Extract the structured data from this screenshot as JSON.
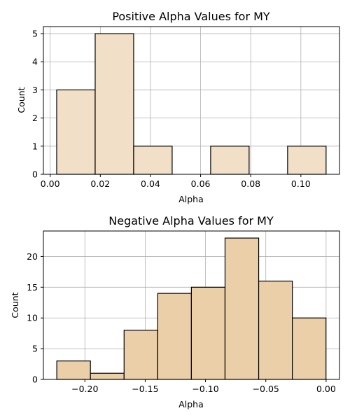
{
  "chart_data": [
    {
      "type": "bar",
      "title": "Positive Alpha Values for MY",
      "xlabel": "Alpha",
      "ylabel": "Count",
      "bin_edges": [
        0.0026,
        0.01795,
        0.0333,
        0.04865,
        0.064,
        0.07935,
        0.0947,
        0.11005
      ],
      "values": [
        3,
        5,
        1,
        0,
        1,
        0,
        1
      ],
      "xlim": [
        -0.0027,
        0.1154
      ],
      "ylim": [
        0,
        5.25
      ],
      "xticks": [
        0.0,
        0.02,
        0.04,
        0.06,
        0.08,
        0.1
      ],
      "xtick_labels": [
        "0.00",
        "0.02",
        "0.04",
        "0.06",
        "0.08",
        "0.10"
      ],
      "yticks": [
        0,
        1,
        2,
        3,
        4,
        5
      ],
      "ytick_labels": [
        "0",
        "1",
        "2",
        "3",
        "4",
        "5"
      ],
      "grid": true,
      "bar_color": "#f1e0c7",
      "edge_color": "#000000"
    },
    {
      "type": "bar",
      "title": "Negative Alpha Values for MY",
      "xlabel": "Alpha",
      "ylabel": "Count",
      "bin_edges": [
        -0.2233,
        -0.1954,
        -0.1675,
        -0.1396,
        -0.1117,
        -0.0838,
        -0.0559,
        -0.028,
        -0.0001
      ],
      "values": [
        3,
        1,
        8,
        14,
        15,
        23,
        16,
        10
      ],
      "xlim": [
        -0.2344,
        0.0111
      ],
      "ylim": [
        0,
        24.15
      ],
      "xticks": [
        -0.2,
        -0.15,
        -0.1,
        -0.05,
        0.0
      ],
      "xtick_labels": [
        "−0.20",
        "−0.15",
        "−0.10",
        "−0.05",
        "0.00"
      ],
      "yticks": [
        0,
        5,
        10,
        15,
        20
      ],
      "ytick_labels": [
        "0",
        "5",
        "10",
        "15",
        "20"
      ],
      "grid": true,
      "bar_color": "#ebcfa8",
      "edge_color": "#000000"
    }
  ]
}
